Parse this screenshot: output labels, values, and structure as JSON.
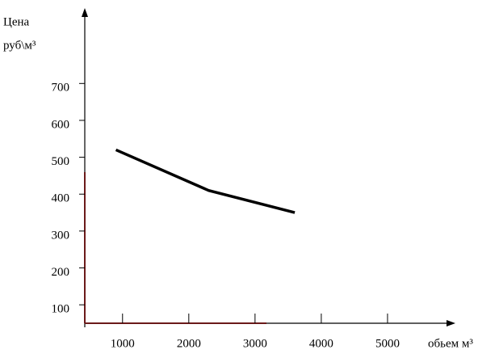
{
  "chart_data": {
    "type": "line",
    "y_label": [
      "Цена",
      "руб\\м³"
    ],
    "x_label": "обьем  м³",
    "x": [
      900,
      2300,
      3600
    ],
    "series": [
      {
        "name": null,
        "color": "#000000",
        "values": [
          520,
          410,
          350
        ]
      }
    ],
    "xlim": [
      430,
      6000
    ],
    "xticks": [
      1000,
      2000,
      3000,
      4000,
      5000
    ],
    "ylim": [
      50,
      900
    ],
    "yticks": [
      100,
      200,
      300,
      400,
      500,
      600,
      700
    ]
  }
}
